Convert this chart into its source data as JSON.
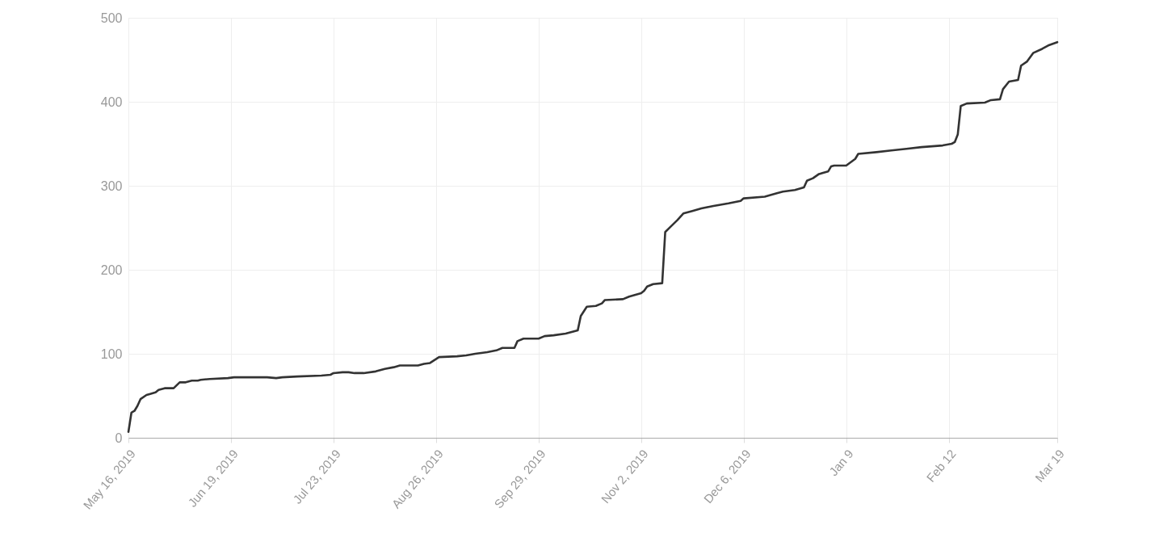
{
  "chart_data": {
    "type": "line",
    "x": [
      "2019-05-16",
      "2019-05-17",
      "2019-05-18",
      "2019-05-19",
      "2019-05-20",
      "2019-05-22",
      "2019-05-23",
      "2019-05-25",
      "2019-05-26",
      "2019-05-28",
      "2019-05-31",
      "2019-06-02",
      "2019-06-04",
      "2019-06-06",
      "2019-06-08",
      "2019-06-09",
      "2019-06-12",
      "2019-06-18",
      "2019-06-20",
      "2019-06-28",
      "2019-07-01",
      "2019-07-04",
      "2019-07-06",
      "2019-07-11",
      "2019-07-19",
      "2019-07-22",
      "2019-07-23",
      "2019-07-26",
      "2019-07-28",
      "2019-07-30",
      "2019-08-02",
      "2019-08-06",
      "2019-08-09",
      "2019-08-12",
      "2019-08-14",
      "2019-08-20",
      "2019-08-22",
      "2019-08-24",
      "2019-08-27",
      "2019-09-02",
      "2019-09-05",
      "2019-09-08",
      "2019-09-12",
      "2019-09-15",
      "2019-09-17",
      "2019-09-21",
      "2019-09-22",
      "2019-09-24",
      "2019-09-29",
      "2019-10-01",
      "2019-10-04",
      "2019-10-08",
      "2019-10-11",
      "2019-10-12",
      "2019-10-13",
      "2019-10-15",
      "2019-10-18",
      "2019-10-20",
      "2019-10-21",
      "2019-10-27",
      "2019-10-29",
      "2019-11-02",
      "2019-11-03",
      "2019-11-04",
      "2019-11-06",
      "2019-11-09",
      "2019-11-10",
      "2019-11-12",
      "2019-11-14",
      "2019-11-16",
      "2019-11-19",
      "2019-11-22",
      "2019-11-26",
      "2019-12-01",
      "2019-12-05",
      "2019-12-06",
      "2019-12-13",
      "2019-12-17",
      "2019-12-19",
      "2019-12-23",
      "2019-12-26",
      "2019-12-27",
      "2019-12-29",
      "2019-12-31",
      "2020-01-03",
      "2020-01-04",
      "2020-01-05",
      "2020-01-09",
      "2020-01-12",
      "2020-01-13",
      "2020-01-19",
      "2020-01-24",
      "2020-01-29",
      "2020-02-03",
      "2020-02-10",
      "2020-02-13",
      "2020-02-14",
      "2020-02-15",
      "2020-02-16",
      "2020-02-18",
      "2020-02-24",
      "2020-02-26",
      "2020-02-29",
      "2020-03-01",
      "2020-03-03",
      "2020-03-06",
      "2020-03-07",
      "2020-03-09",
      "2020-03-11",
      "2020-03-14",
      "2020-03-16",
      "2020-03-19"
    ],
    "series": [
      {
        "color": "#333333",
        "values": [
          7,
          30,
          32,
          38,
          46,
          51,
          52,
          54,
          57,
          59,
          59,
          66,
          66,
          68,
          68,
          69,
          70,
          71,
          72,
          72,
          72,
          71,
          72,
          73,
          74,
          75,
          77,
          78,
          78,
          77,
          77,
          79,
          82,
          84,
          86,
          86,
          88,
          89,
          96,
          97,
          98,
          100,
          102,
          104,
          107,
          107,
          115,
          118,
          118,
          121,
          122,
          124,
          127,
          128,
          145,
          156,
          157,
          160,
          164,
          165,
          168,
          172,
          175,
          180,
          183,
          184,
          245,
          252,
          259,
          267,
          270,
          273,
          276,
          279,
          282,
          285,
          287,
          291,
          293,
          295,
          298,
          306,
          309,
          314,
          317,
          323,
          324,
          324,
          332,
          338,
          340,
          342,
          344,
          346,
          348,
          350,
          352,
          361,
          395,
          398,
          399,
          402,
          403,
          415,
          424,
          426,
          443,
          448,
          458,
          463,
          467,
          471
        ]
      }
    ],
    "xlim": [
      "2019-05-16",
      "2020-03-19"
    ],
    "xticks": [
      {
        "value": "2019-05-16",
        "label": "May 16, 2019"
      },
      {
        "value": "2019-06-19",
        "label": "Jun 19, 2019"
      },
      {
        "value": "2019-07-23",
        "label": "Jul 23, 2019"
      },
      {
        "value": "2019-08-26",
        "label": "Aug 26, 2019"
      },
      {
        "value": "2019-09-29",
        "label": "Sep 29, 2019"
      },
      {
        "value": "2019-11-02",
        "label": "Nov 2, 2019"
      },
      {
        "value": "2019-12-06",
        "label": "Dec 6, 2019"
      },
      {
        "value": "2020-01-09",
        "label": "Jan 9"
      },
      {
        "value": "2020-02-12",
        "label": "Feb 12"
      },
      {
        "value": "2020-03-19",
        "label": "Mar 19"
      }
    ],
    "ylim": [
      0,
      500
    ],
    "yticks": [
      0,
      100,
      200,
      300,
      400,
      500
    ],
    "grid": true,
    "legend": false,
    "marker": "none",
    "line_style": "solid"
  }
}
